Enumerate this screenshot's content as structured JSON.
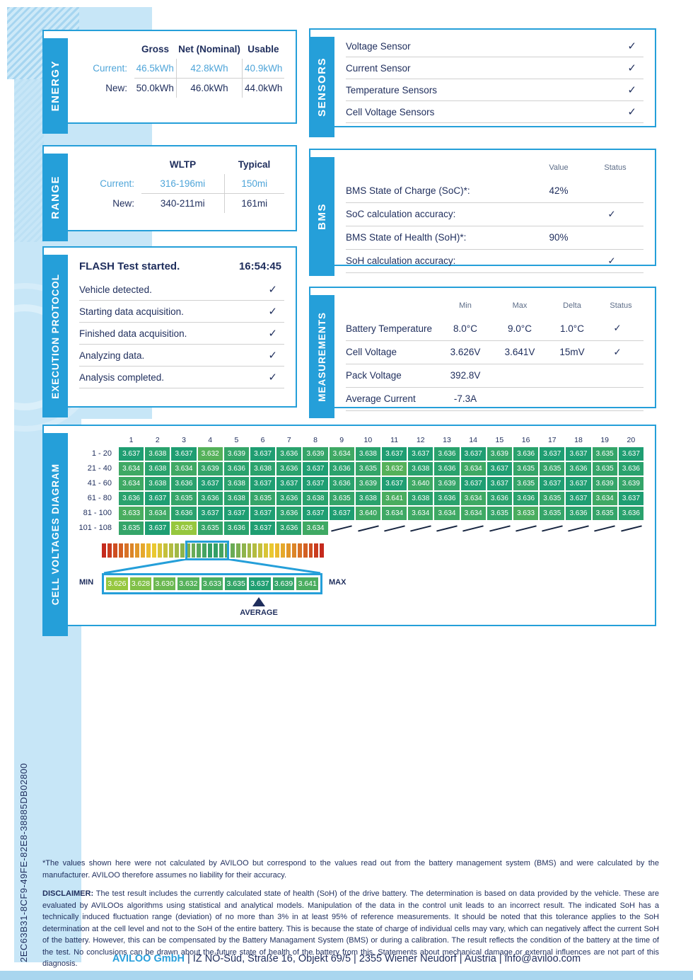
{
  "colors": {
    "accent_blue": "#259fd9",
    "navy_text": "#1e2d5c",
    "highlight_blue_text": "#4fa5d9",
    "light_band": "#c7e6f7",
    "cell_green": "#1f9e72",
    "cell_yellow_green": "#96c73e"
  },
  "icons": {
    "check": "✓"
  },
  "panels": {
    "energy": {
      "label": "ENERGY",
      "headers": [
        "Gross",
        "Net (Nominal)",
        "Usable"
      ],
      "rows": [
        {
          "label": "Current:",
          "values": [
            "46.5kWh",
            "42.8kWh",
            "40.9kWh"
          ],
          "highlight": true
        },
        {
          "label": "New:",
          "values": [
            "50.0kWh",
            "46.0kWh",
            "44.0kWh"
          ],
          "highlight": false
        }
      ]
    },
    "range": {
      "label": "RANGE",
      "headers": [
        "WLTP",
        "Typical"
      ],
      "rows": [
        {
          "label": "Current:",
          "values": [
            "316-196mi",
            "150mi"
          ],
          "highlight": true
        },
        {
          "label": "New:",
          "values": [
            "340-211mi",
            "161mi"
          ],
          "highlight": false
        }
      ]
    },
    "protocol": {
      "label": "EXECUTION PROTOCOL",
      "title": "FLASH Test started.",
      "time": "16:54:45",
      "steps": [
        "Vehicle detected.",
        "Starting data acquisition.",
        "Finished data acquisition.",
        "Analyzing data.",
        "Analysis completed."
      ]
    },
    "sensors": {
      "label": "SENSORS",
      "items": [
        "Voltage Sensor",
        "Current Sensor",
        "Temperature Sensors",
        "Cell Voltage Sensors"
      ]
    },
    "bms": {
      "label": "BMS",
      "col_headers": [
        "Value",
        "Status"
      ],
      "rows": [
        {
          "label": "BMS State of Charge (SoC)*:",
          "value": "42%",
          "check": false
        },
        {
          "label": "SoC calculation accuracy:",
          "value": "",
          "check": true
        },
        {
          "label": "BMS State of Health (SoH)*:",
          "value": "90%",
          "check": false
        },
        {
          "label": "SoH calculation accuracy:",
          "value": "",
          "check": true
        }
      ]
    },
    "measurements": {
      "label": "MEASUREMENTS",
      "col_headers": [
        "Min",
        "Max",
        "Delta",
        "Status"
      ],
      "rows": [
        {
          "label": "Battery Temperature",
          "min": "8.0°C",
          "max": "9.0°C",
          "delta": "1.0°C",
          "check": true
        },
        {
          "label": "Cell Voltage",
          "min": "3.626V",
          "max": "3.641V",
          "delta": "15mV",
          "check": true
        },
        {
          "label": "Pack Voltage",
          "min": "392.8V",
          "max": "",
          "delta": "",
          "check": false
        },
        {
          "label": "Average Current",
          "min": "-7.3A",
          "max": "",
          "delta": "",
          "check": false
        }
      ]
    },
    "cells": {
      "label": "CELL VOLTAGES DIAGRAM",
      "col_numbers": [
        1,
        2,
        3,
        4,
        5,
        6,
        7,
        8,
        9,
        10,
        11,
        12,
        13,
        14,
        15,
        16,
        17,
        18,
        19,
        20
      ],
      "row_labels": [
        "1 - 20",
        "21 - 40",
        "41 - 60",
        "61 - 80",
        "81 - 100",
        "101 - 108"
      ],
      "values": [
        "3.637",
        "3.638",
        "3.637",
        "3.632",
        "3.639",
        "3.637",
        "3.636",
        "3.639",
        "3.634",
        "3.638",
        "3.637",
        "3.637",
        "3.636",
        "3.637",
        "3.639",
        "3.636",
        "3.637",
        "3.637",
        "3.635",
        "3.637",
        "3.634",
        "3.638",
        "3.634",
        "3.639",
        "3.636",
        "3.638",
        "3.636",
        "3.637",
        "3.636",
        "3.635",
        "3.632",
        "3.638",
        "3.636",
        "3.634",
        "3.637",
        "3.635",
        "3.635",
        "3.636",
        "3.635",
        "3.636",
        "3.634",
        "3.638",
        "3.636",
        "3.637",
        "3.638",
        "3.637",
        "3.637",
        "3.637",
        "3.636",
        "3.639",
        "3.637",
        "3.640",
        "3.639",
        "3.637",
        "3.637",
        "3.635",
        "3.637",
        "3.637",
        "3.639",
        "3.639",
        "3.636",
        "3.637",
        "3.635",
        "3.636",
        "3.638",
        "3.635",
        "3.636",
        "3.638",
        "3.635",
        "3.638",
        "3.641",
        "3.638",
        "3.636",
        "3.634",
        "3.636",
        "3.636",
        "3.635",
        "3.637",
        "3.634",
        "3.637",
        "3.633",
        "3.634",
        "3.636",
        "3.637",
        "3.637",
        "3.637",
        "3.636",
        "3.637",
        "3.637",
        "3.640",
        "3.634",
        "3.634",
        "3.634",
        "3.634",
        "3.635",
        "3.633",
        "3.635",
        "3.636",
        "3.635",
        "3.636",
        "3.635",
        "3.637",
        "3.626",
        "3.635",
        "3.636",
        "3.637",
        "3.636",
        "3.634"
      ],
      "min": "3.626",
      "max": "3.641",
      "average": "3.637",
      "scale_values": [
        "3.626",
        "3.628",
        "3.630",
        "3.632",
        "3.633",
        "3.635",
        "3.637",
        "3.639",
        "3.641"
      ],
      "min_label": "MIN",
      "max_label": "MAX",
      "average_label": "AVERAGE",
      "average_scale_index": 6,
      "gradient_segments": 40
    }
  },
  "footer": {
    "report_id": "2EC63B31-8CF9-49FE-82E8-38885DB02800",
    "note": "*The values shown here were not calculated by AVILOO but correspond to the values read out from the battery management system (BMS) and were calculated by the manufacturer. AVILOO therefore assumes no liability for their accuracy.",
    "disclaimer_label": "DISCLAIMER:",
    "disclaimer": "The test result includes the currently calculated state of health (SoH) of the drive battery. The determination is based on data provided by the vehicle. These are evaluated by AVILOOs algorithms using statistical and analytical models. Manipulation of the data in the control unit leads to an incorrect result. The indicated SoH has a technically induced fluctuation range (deviation) of no more than 3% in at least 95% of reference measurements. It should be noted that this tolerance applies to the SoH determination at the cell level and not to the SoH of the entire battery. This is because the state of charge of individual cells may vary, which can negatively affect the current SoH of the battery. However, this can be compensated by the Battery Managament System (BMS) or during a calibration. The result reflects the condition of the battery at the time of the test. No conclusions can be drawn about the future state of health of the battery from this. Statements about mechanical damage or external influences are not part of this diagnosis.",
    "company": "AVILOO GmbH",
    "address_segments": [
      "IZ NÖ-Süd, Straße 16, Objekt 69/5",
      "2355 Wiener Neudorf",
      "Austria",
      "info@aviloo.com"
    ],
    "separator": "|"
  }
}
